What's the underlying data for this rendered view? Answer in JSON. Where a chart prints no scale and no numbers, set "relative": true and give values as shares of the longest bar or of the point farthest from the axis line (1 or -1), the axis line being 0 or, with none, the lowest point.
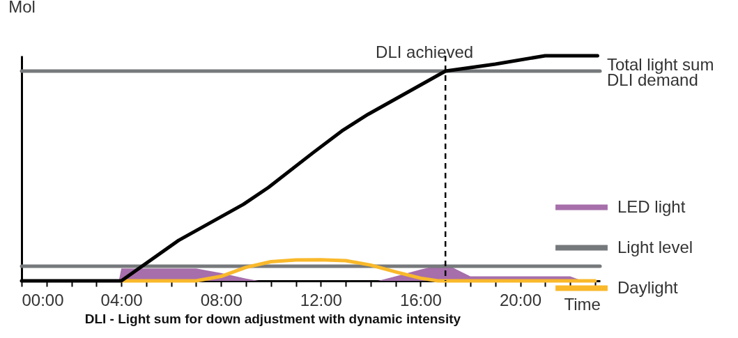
{
  "chart_data": {
    "type": "line",
    "title": "DLI - Light sum for down adjustment with dynamic intensity",
    "xlabel": "Time",
    "ylabel": "Mol",
    "relative": true,
    "grid": false,
    "legend": "bottom right",
    "xlim": [
      0,
      23.2
    ],
    "xticks": [
      {
        "value": 0,
        "label": "00:00"
      },
      {
        "value": 1,
        "label": null
      },
      {
        "value": 2,
        "label": null
      },
      {
        "value": 3,
        "label": null
      },
      {
        "value": 4,
        "label": "04:00"
      },
      {
        "value": 5,
        "label": null
      },
      {
        "value": 6,
        "label": null
      },
      {
        "value": 7,
        "label": null
      },
      {
        "value": 8,
        "label": "08:00"
      },
      {
        "value": 9,
        "label": null
      },
      {
        "value": 10,
        "label": null
      },
      {
        "value": 11,
        "label": null
      },
      {
        "value": 12,
        "label": "12:00"
      },
      {
        "value": 13,
        "label": null
      },
      {
        "value": 14,
        "label": null
      },
      {
        "value": 15,
        "label": null
      },
      {
        "value": 16,
        "label": "16:00"
      },
      {
        "value": 17,
        "label": null
      },
      {
        "value": 18,
        "label": null
      },
      {
        "value": 19,
        "label": null
      },
      {
        "value": 20,
        "label": "20:00"
      },
      {
        "value": 21,
        "label": null
      },
      {
        "value": 22,
        "label": null
      },
      {
        "value": 23,
        "label": null
      }
    ],
    "series": [
      {
        "name": "LED light",
        "type": "area",
        "color": "#a66eab",
        "x": [
          3.9,
          4,
          7,
          8,
          9,
          9.5,
          14.3,
          15,
          16,
          17,
          18,
          22,
          22.5
        ],
        "values": [
          0,
          0.055,
          0.055,
          0.035,
          0.01,
          0,
          0,
          0.02,
          0.05,
          0.075,
          0.02,
          0.02,
          0
        ]
      },
      {
        "name": "Light level",
        "color": "#76797b",
        "x": [
          0,
          23.2
        ],
        "values": [
          0.065,
          0.065
        ]
      },
      {
        "name": "Daylight",
        "color": "#f9b92b",
        "x": [
          4,
          7,
          8,
          9,
          10,
          11,
          12,
          13,
          14,
          15,
          16,
          16.7,
          23
        ],
        "values": [
          0,
          0,
          0.02,
          0.06,
          0.085,
          0.093,
          0.094,
          0.09,
          0.07,
          0.04,
          0.012,
          0,
          0
        ]
      },
      {
        "color": "#76797b",
        "x": [
          0,
          23.2
        ],
        "values": [
          0.932,
          0.932
        ]
      },
      {
        "color": "#000000",
        "x": [
          0,
          4,
          6.3,
          8.9,
          9.9,
          11.7,
          12.9,
          13.9,
          17,
          19,
          21,
          23.1
        ],
        "values": [
          0,
          0,
          0.18,
          0.34,
          0.415,
          0.57,
          0.67,
          0.74,
          0.932,
          0.963,
          1,
          1
        ]
      }
    ],
    "ref_lines": [
      {
        "axis": "x",
        "value": 17,
        "label": "DLI achieved",
        "color": "#000000",
        "line_style": "dashed"
      }
    ],
    "annotations": [
      {
        "text": "Total light sum",
        "x": 23.2,
        "y": 1
      },
      {
        "text": "DLI demand",
        "x": 23.2,
        "y": 0.932
      }
    ]
  }
}
